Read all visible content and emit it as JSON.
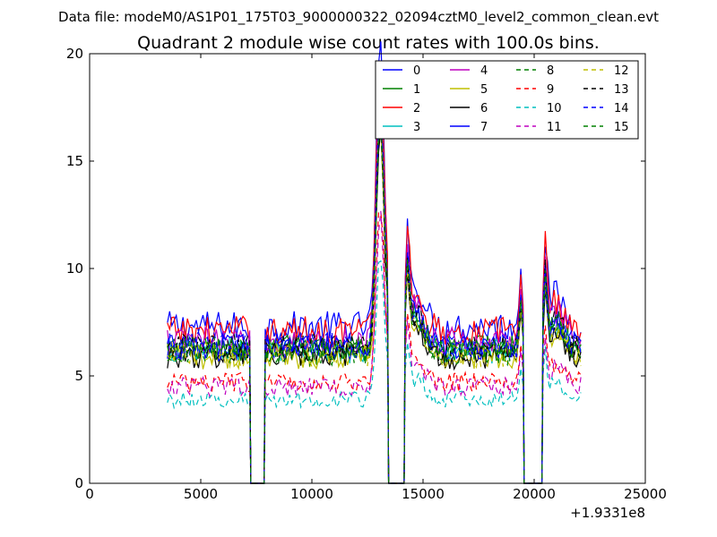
{
  "chart_data": {
    "type": "line",
    "suptitle": "Data file: modeM0/AS1P01_175T03_9000000322_02094cztM0_level2_common_clean.evt",
    "title": "Quadrant 2 module wise count rates with 100.0s bins.",
    "xlabel": "",
    "ylabel": "",
    "x_offset_label": "+1.9331e8",
    "xlim": [
      0,
      25000
    ],
    "ylim": [
      0,
      20
    ],
    "xticks": [
      0,
      5000,
      10000,
      15000,
      20000,
      25000
    ],
    "yticks": [
      0,
      5,
      10,
      15,
      20
    ],
    "legend_position": "top-right",
    "grid": false,
    "segments": [
      [
        3500,
        7200
      ],
      [
        7900,
        13400
      ],
      [
        14200,
        19500
      ],
      [
        20400,
        22100
      ]
    ],
    "dropouts": [
      [
        7200,
        7900
      ],
      [
        13400,
        14200
      ],
      [
        19500,
        20400
      ]
    ],
    "series": [
      {
        "name": "0",
        "color": "#0000ff",
        "dash": "solid",
        "level": 7.3
      },
      {
        "name": "1",
        "color": "#008000",
        "dash": "solid",
        "level": 6.3
      },
      {
        "name": "2",
        "color": "#ff0000",
        "dash": "solid",
        "level": 7.1
      },
      {
        "name": "3",
        "color": "#00bfbf",
        "dash": "solid",
        "level": 6.2
      },
      {
        "name": "4",
        "color": "#bf00bf",
        "dash": "solid",
        "level": 6.6
      },
      {
        "name": "5",
        "color": "#bfbf00",
        "dash": "solid",
        "level": 5.9
      },
      {
        "name": "6",
        "color": "#000000",
        "dash": "solid",
        "level": 5.9
      },
      {
        "name": "7",
        "color": "#0000ff",
        "dash": "solid",
        "level": 6.3
      },
      {
        "name": "8",
        "color": "#008000",
        "dash": "dashed",
        "level": 6.1
      },
      {
        "name": "9",
        "color": "#ff0000",
        "dash": "dashed",
        "level": 4.7
      },
      {
        "name": "10",
        "color": "#00bfbf",
        "dash": "dashed",
        "level": 3.9
      },
      {
        "name": "11",
        "color": "#bf00bf",
        "dash": "dashed",
        "level": 4.5
      },
      {
        "name": "12",
        "color": "#bfbf00",
        "dash": "dashed",
        "level": 6.0
      },
      {
        "name": "13",
        "color": "#000000",
        "dash": "dashed",
        "level": 6.3
      },
      {
        "name": "14",
        "color": "#0000ff",
        "dash": "dashed",
        "level": 6.4
      },
      {
        "name": "15",
        "color": "#008000",
        "dash": "dashed",
        "level": 6.2
      }
    ]
  }
}
